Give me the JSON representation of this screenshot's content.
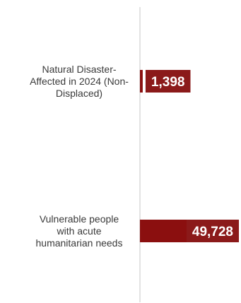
{
  "chart_data": {
    "type": "bar",
    "orientation": "horizontal",
    "categories": [
      "Natural Disaster-Affected in 2024 (Non-Displaced)",
      "Vulnerable people with acute humanitarian needs"
    ],
    "category_lines": [
      [
        "Natural Disaster-",
        "Affected in 2024 (Non-",
        "Displaced)"
      ],
      [
        "Vulnerable people",
        "with acute",
        "humanitarian needs"
      ]
    ],
    "values": [
      1398,
      49728
    ],
    "value_labels": [
      "1,398",
      "49,728"
    ],
    "xlim": [
      0,
      49728
    ],
    "colors": {
      "bar": "#8b0f0f",
      "value_label_bg": "#8b1a1a",
      "value_label_text": "#ffffff",
      "axis": "#d0d0d0",
      "category_text": "#3a3a3a"
    },
    "grid": false,
    "legend": "none"
  }
}
